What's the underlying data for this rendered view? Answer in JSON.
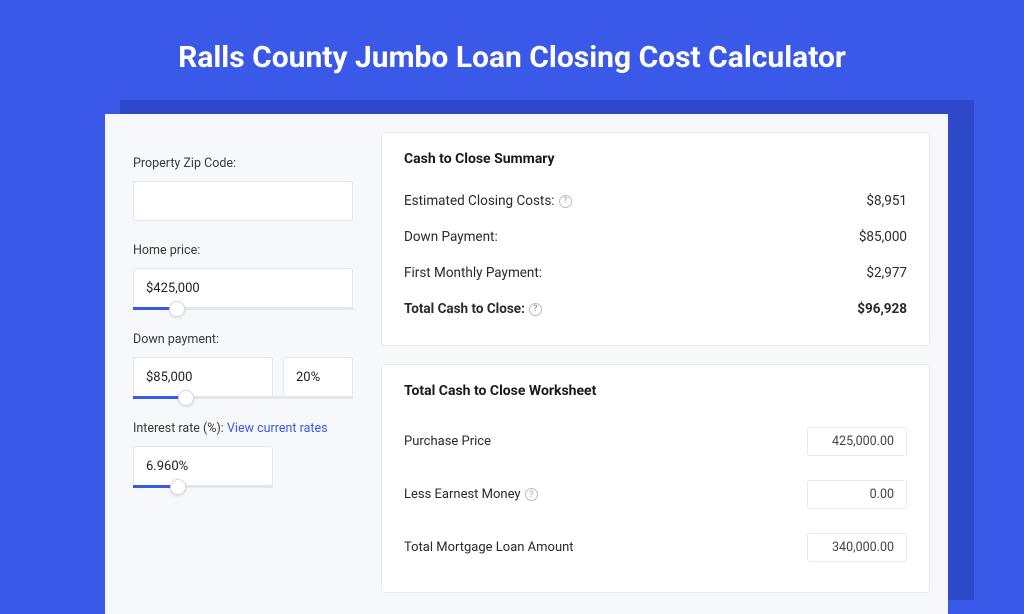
{
  "page": {
    "title": "Ralls County Jumbo Loan Closing Cost Calculator",
    "bg_color": "#3a59e8",
    "shadow_color": "#2d48c9",
    "panel_bg": "#f7f8fb",
    "card_bg": "#ffffff",
    "accent": "#3a59e8"
  },
  "inputs": {
    "zip": {
      "label": "Property Zip Code:",
      "value": ""
    },
    "home_price": {
      "label": "Home price:",
      "value": "$425,000",
      "slider_pct": 20
    },
    "down_payment": {
      "label": "Down payment:",
      "value": "$85,000",
      "pct": "20%",
      "slider_pct": 24
    },
    "interest_rate": {
      "label": "Interest rate (%):",
      "link_text": "View current rates",
      "value": "6.960%",
      "slider_pct": 32
    }
  },
  "summary": {
    "heading": "Cash to Close Summary",
    "rows": [
      {
        "label": "Estimated Closing Costs:",
        "help": true,
        "value": "$8,951",
        "bold": false
      },
      {
        "label": "Down Payment:",
        "help": false,
        "value": "$85,000",
        "bold": false
      },
      {
        "label": "First Monthly Payment:",
        "help": false,
        "value": "$2,977",
        "bold": false
      },
      {
        "label": "Total Cash to Close:",
        "help": true,
        "value": "$96,928",
        "bold": true
      }
    ]
  },
  "worksheet": {
    "heading": "Total Cash to Close Worksheet",
    "rows": [
      {
        "label": "Purchase Price",
        "help": false,
        "value": "425,000.00"
      },
      {
        "label": "Less Earnest Money",
        "help": true,
        "value": "0.00"
      },
      {
        "label": "Total Mortgage Loan Amount",
        "help": false,
        "value": "340,000.00"
      }
    ]
  }
}
